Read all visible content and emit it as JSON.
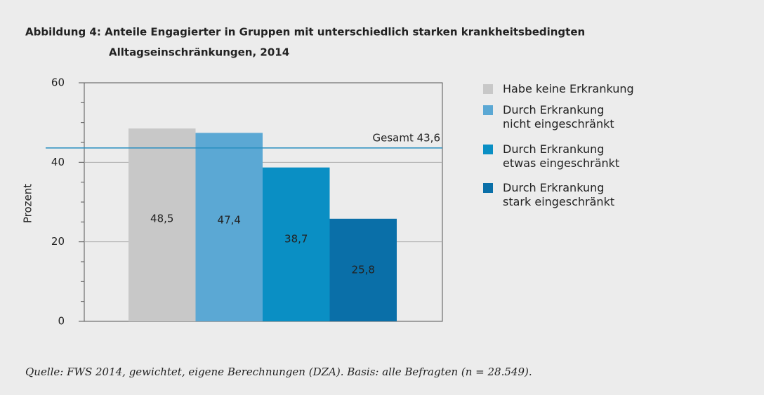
{
  "chart_data": {
    "type": "bar",
    "title": "Abbildung 4: Anteile Engagierter in Gruppen mit unterschiedlich starken krankheitsbedingten",
    "subtitle": "Alltagseinschränkungen, 2014",
    "y_label": "Prozent",
    "source": "Quelle: FWS 2014, gewichtet, eigene Berechnungen (DZA). Basis: alle Befragten (n = 28.549).",
    "categories": [
      null
    ],
    "series": [
      {
        "name": "Habe keine Erkrankung",
        "color": "#c8c8c8",
        "values": [
          48.5
        ],
        "value_labels": [
          "48,5"
        ],
        "label_color": "#222222"
      },
      {
        "name": "Durch Erkrankung\nnicht eingeschränkt",
        "color": "#5ba8d4",
        "values": [
          47.4
        ],
        "value_labels": [
          "47,4"
        ],
        "label_color": "#222222"
      },
      {
        "name": "Durch Erkrankung\netwas eingeschränkt",
        "color": "#0a8fc4",
        "values": [
          38.7
        ],
        "value_labels": [
          "38,7"
        ],
        "label_color": "#222222"
      },
      {
        "name": "Durch Erkrankung\nstark eingeschränkt",
        "color": "#0a6fa8",
        "values": [
          25.8
        ],
        "value_labels": [
          "25,8"
        ],
        "label_color": "#ffffff"
      }
    ],
    "reference": {
      "value": 43.6,
      "label": "Gesamt 43,6",
      "color": "#2a8fc0"
    },
    "ylim": [
      0,
      60
    ],
    "yticks": [
      0,
      20,
      40,
      60
    ],
    "minor_yticks": [
      5,
      10,
      15,
      25,
      30,
      35,
      45,
      50,
      55
    ],
    "grid": true
  }
}
